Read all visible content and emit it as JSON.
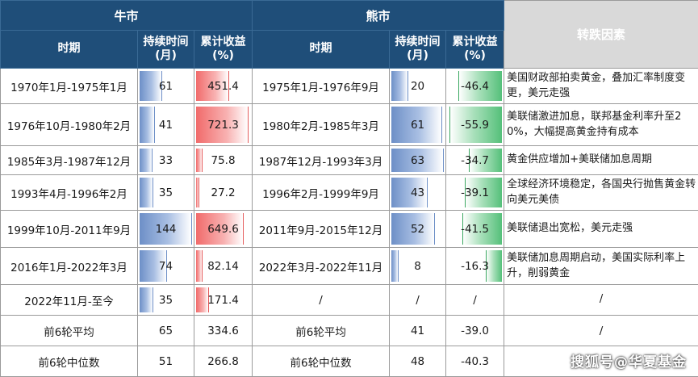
{
  "headers": {
    "bull": "牛市",
    "bear": "熊市",
    "reason": "转跌因素",
    "period": "时期",
    "duration_l1": "持续时间",
    "duration_l2": "(月)",
    "return_l1": "累计收益",
    "return_l2": "(%)"
  },
  "rows": [
    {
      "bull_period": "1970年1月-1975年1月",
      "bull_dur": "61",
      "bull_ret": "451.4",
      "bear_period": "1975年1月-1976年9月",
      "bear_dur": "20",
      "bear_ret": "-46.4",
      "reason": "美国财政部拍卖黄金，叠加汇率制度变更，美元走强",
      "bull_dur_v": 61,
      "bull_ret_v": 451.4,
      "bear_dur_v": 20,
      "bear_ret_v": -46.4
    },
    {
      "bull_period": "1976年10月-1980年2月",
      "bull_dur": "41",
      "bull_ret": "721.3",
      "bear_period": "1980年2月-1985年3月",
      "bear_dur": "61",
      "bear_ret": "-55.9",
      "reason": "美联储激进加息，联邦基金利率升至20%，大幅提高黄金持有成本",
      "bull_dur_v": 41,
      "bull_ret_v": 721.3,
      "bear_dur_v": 61,
      "bear_ret_v": -55.9
    },
    {
      "bull_period": "1985年3月-1987年12月",
      "bull_dur": "33",
      "bull_ret": "75.8",
      "bear_period": "1987年12月-1993年3月",
      "bear_dur": "63",
      "bear_ret": "-34.7",
      "reason": "黄金供应增加+美联储加息周期",
      "bull_dur_v": 33,
      "bull_ret_v": 75.8,
      "bear_dur_v": 63,
      "bear_ret_v": -34.7
    },
    {
      "bull_period": "1993年4月-1996年2月",
      "bull_dur": "35",
      "bull_ret": "27.2",
      "bear_period": "1996年2月-1999年9月",
      "bear_dur": "43",
      "bear_ret": "-39.1",
      "reason": "全球经济环境稳定，各国央行抛售黄金转向美元美债",
      "bull_dur_v": 35,
      "bull_ret_v": 27.2,
      "bear_dur_v": 43,
      "bear_ret_v": -39.1
    },
    {
      "bull_period": "1999年10月-2011年9月",
      "bull_dur": "144",
      "bull_ret": "649.6",
      "bear_period": "2011年9月-2015年12月",
      "bear_dur": "52",
      "bear_ret": "-41.5",
      "reason": "美联储退出宽松，美元走强",
      "bull_dur_v": 144,
      "bull_ret_v": 649.6,
      "bear_dur_v": 52,
      "bear_ret_v": -41.5
    },
    {
      "bull_period": "2016年1月-2022年3月",
      "bull_dur": "74",
      "bull_ret": "82.14",
      "bear_period": "2022年3月-2022年11月",
      "bear_dur": "8",
      "bear_ret": "-16.3",
      "reason": "美联储加息周期启动，美国实际利率上升，削弱黄金",
      "bull_dur_v": 74,
      "bull_ret_v": 82.14,
      "bear_dur_v": 8,
      "bear_ret_v": -16.3
    },
    {
      "bull_period": "2022年11月-至今",
      "bull_dur": "35",
      "bull_ret": "171.4",
      "bear_period": "/",
      "bear_dur": "/",
      "bear_ret": "/",
      "reason": "/",
      "bull_dur_v": 35,
      "bull_ret_v": 171.4,
      "bear_dur_v": null,
      "bear_ret_v": null
    }
  ],
  "summary": [
    {
      "label": "前6轮平均",
      "bull_dur": "65",
      "bull_ret": "334.6",
      "bear_label": "前6轮平均",
      "bear_dur": "41",
      "bear_ret": "-39.0",
      "reason": "/"
    },
    {
      "label": "前6轮中位数",
      "bull_dur": "51",
      "bull_ret": "266.8",
      "bear_label": "前6轮中位数",
      "bear_dur": "48",
      "bear_ret": "-40.3",
      "reason": ""
    }
  ],
  "bar_scale": {
    "bull_dur_max": 144,
    "bull_ret_max": 721.3,
    "bear_dur_max": 63,
    "bear_ret_max": 55.9
  },
  "colors": {
    "header": "#1f4e79",
    "reason_header": "#d9d9d9",
    "duration_bar": "#6d8fc7",
    "positive_bar": "#f16b6b",
    "negative_bar": "#55c07a"
  },
  "watermark": "搜狐号@华夏基金"
}
